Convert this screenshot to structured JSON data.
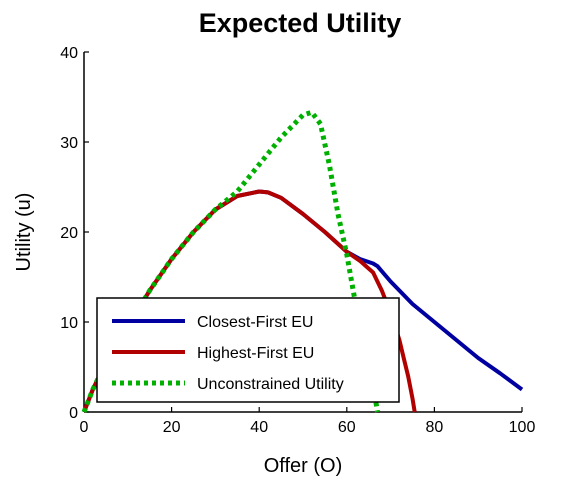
{
  "chart_data": {
    "type": "line",
    "title": "Expected Utility",
    "xlabel": "Offer  (O)",
    "ylabel": "Utility (u)",
    "xlim": [
      0,
      100
    ],
    "ylim": [
      0,
      40
    ],
    "xticks": [
      0,
      20,
      40,
      60,
      80,
      100
    ],
    "yticks": [
      0,
      10,
      20,
      30,
      40
    ],
    "legend_position": "bottom-left",
    "series": [
      {
        "name": "Closest-First EU",
        "color": "#0000a0",
        "style": "solid",
        "x": [
          0,
          2,
          5,
          10,
          15,
          20,
          25,
          30,
          35,
          40,
          42,
          45,
          50,
          55,
          60,
          63,
          66,
          67,
          70,
          75,
          80,
          85,
          90,
          95,
          100
        ],
        "y": [
          0,
          2.5,
          5.5,
          9.5,
          13.5,
          17.0,
          20.0,
          22.5,
          24.0,
          24.5,
          24.4,
          23.8,
          22.0,
          20.0,
          17.8,
          17.0,
          16.5,
          16.2,
          14.5,
          12.0,
          10.0,
          8.0,
          6.0,
          4.3,
          2.5
        ]
      },
      {
        "name": "Highest-First EU",
        "color": "#b00000",
        "style": "solid",
        "x": [
          0,
          2,
          5,
          10,
          15,
          20,
          25,
          30,
          35,
          40,
          42,
          45,
          50,
          55,
          60,
          63,
          66,
          68,
          70,
          72,
          73,
          74,
          75,
          75.5
        ],
        "y": [
          0,
          2.5,
          5.5,
          9.5,
          13.5,
          17.0,
          20.0,
          22.5,
          24.0,
          24.5,
          24.4,
          23.8,
          22.0,
          20.0,
          17.8,
          16.8,
          15.5,
          13.5,
          11.0,
          8.0,
          6.0,
          4.0,
          1.5,
          0
        ]
      },
      {
        "name": "Unconstrained Utility",
        "color": "#00b000",
        "style": "dotted",
        "x": [
          0,
          2,
          5,
          10,
          15,
          20,
          25,
          30,
          35,
          40,
          45,
          50,
          52,
          54,
          56,
          58,
          60,
          62,
          64,
          66,
          67
        ],
        "y": [
          0,
          2.5,
          5.5,
          9.5,
          13.5,
          17.0,
          20.0,
          22.5,
          24.5,
          27.5,
          30.5,
          33.0,
          33.3,
          32.0,
          27.5,
          22.0,
          17.5,
          12.0,
          7.0,
          3.0,
          0
        ]
      }
    ]
  }
}
